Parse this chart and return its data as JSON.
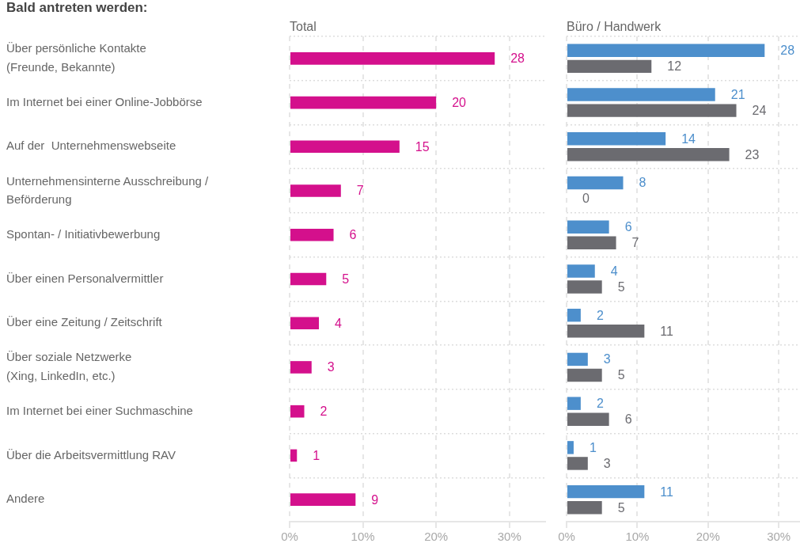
{
  "chart_data": [
    {
      "type": "bar",
      "orientation": "horizontal",
      "title": "Bald antreten werden:",
      "subtitle": "Total",
      "categories": [
        "Über persönliche Kontakte\n(Freunde, Bekannte)",
        "Im Internet bei einer Online-Jobbörse",
        "Auf der  Unternehmenswebseite",
        "Unternehmensinterne Ausschreibung /\nBeförderung",
        "Spontan- / Initiativbewerbung",
        "Über einen Personalvermittler",
        "Über eine Zeitung / Zeitschrift",
        "Über soziale Netzwerke\n(Xing, LinkedIn, etc.)",
        "Im Internet bei einer Suchmaschine",
        "Über die Arbeitsvermittlung RAV",
        "Andere"
      ],
      "series": [
        {
          "color": "#d4108c",
          "values": [
            28,
            20,
            15,
            7,
            6,
            5,
            4,
            3,
            2,
            1,
            9
          ]
        }
      ],
      "xlim": [
        0,
        35
      ],
      "xticks": [
        {
          "value": 0,
          "label": "0%"
        },
        {
          "value": 10,
          "label": "10%"
        },
        {
          "value": 20,
          "label": "20%"
        },
        {
          "value": 30,
          "label": "30%"
        }
      ],
      "grid": true,
      "data_labels": true
    },
    {
      "type": "bar",
      "orientation": "horizontal",
      "subtitle": "Büro / Handwerk",
      "categories": [
        null,
        null,
        null,
        null,
        null,
        null,
        null,
        null,
        null,
        null,
        null
      ],
      "series": [
        {
          "color": "#4d8fcc",
          "values": [
            28,
            21,
            14,
            8,
            6,
            4,
            2,
            3,
            2,
            1,
            11
          ]
        },
        {
          "color": "#6b6b70",
          "values": [
            12,
            24,
            23,
            0,
            7,
            5,
            11,
            5,
            6,
            3,
            5
          ]
        }
      ],
      "xlim": [
        0,
        33
      ],
      "xticks": [
        {
          "value": 0,
          "label": "0%"
        },
        {
          "value": 10,
          "label": "10%"
        },
        {
          "value": 20,
          "label": "20%"
        },
        {
          "value": 30,
          "label": "30%"
        }
      ],
      "grid": true,
      "data_labels": true
    }
  ]
}
